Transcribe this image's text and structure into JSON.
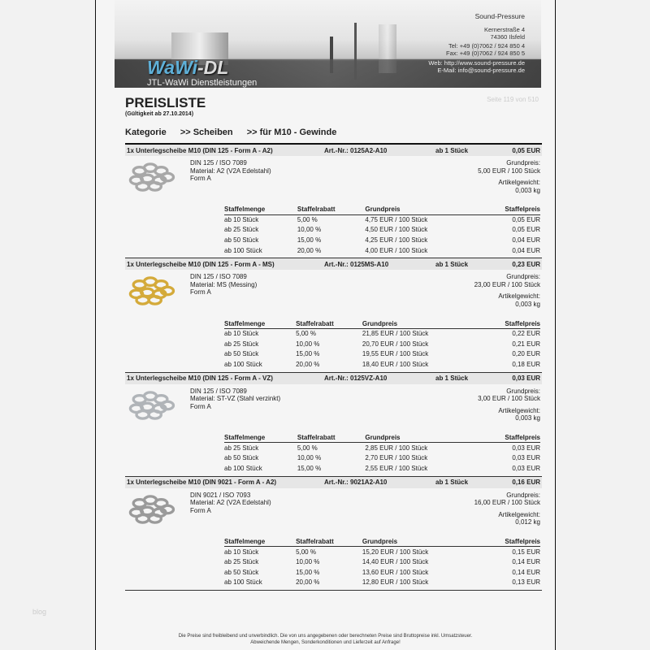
{
  "watermark": "blog",
  "header": {
    "logo_main": "WaWi",
    "logo_dash": "-DL",
    "logo_sub": "JTL-WaWi Dienstleistungen",
    "company": "Sound-Pressure",
    "street": "Kernerstraße 4",
    "city": "74360 Ilsfeld",
    "tel": "Tel: +49 (0)7062 / 924 850 4",
    "fax": "Fax: +49 (0)7062 / 924 850 5",
    "web": "Web: http://www.sound-pressure.de",
    "email": "E-Mail: info@sound-pressure.de"
  },
  "title": "PREISLISTE",
  "validity": "(Gültigkeit ab 27.10.2014)",
  "page_number": "Seite 119 von 510",
  "breadcrumb": [
    "Kategorie",
    ">> Scheiben",
    ">> für M10 - Gewinde"
  ],
  "table_headers": [
    "Staffelmenge",
    "Staffelrabatt",
    "Grundpreis",
    "Staffelpreis"
  ],
  "products": [
    {
      "name": "1x Unterlegscheibe M10  (DIN 125 - Form A - A2)",
      "art": "Art.-Nr.:  0125A2-A10",
      "min": "ab 1 Stück",
      "price": "0,05 EUR",
      "color": "#a8a8a8",
      "desc": [
        "DIN 125 / ISO 7089",
        "Material: A2 (V2A Edelstahl)",
        "Form A"
      ],
      "base_label": "Grundpreis:",
      "base": "5,00 EUR / 100 Stück",
      "weight_label": "Artikelgewicht:",
      "weight": "0,003 kg",
      "rows": [
        [
          "ab 10 Stück",
          "5,00 %",
          "4,75 EUR / 100 Stück",
          "0,05 EUR"
        ],
        [
          "ab 25 Stück",
          "10,00 %",
          "4,50 EUR / 100 Stück",
          "0,05 EUR"
        ],
        [
          "ab 50 Stück",
          "15,00 %",
          "4,25 EUR / 100 Stück",
          "0,04 EUR"
        ],
        [
          "ab 100 Stück",
          "20,00 %",
          "4,00 EUR / 100 Stück",
          "0,04 EUR"
        ]
      ]
    },
    {
      "name": "1x Unterlegscheibe M10  (DIN 125 - Form A - MS)",
      "art": "Art.-Nr.:  0125MS-A10",
      "min": "ab 1 Stück",
      "price": "0,23 EUR",
      "color": "#d4aa3a",
      "desc": [
        "DIN 125 / ISO 7089",
        "Material: MS (Messing)",
        "Form A"
      ],
      "base_label": "Grundpreis:",
      "base": "23,00 EUR / 100 Stück",
      "weight_label": "Artikelgewicht:",
      "weight": "0,003 kg",
      "rows": [
        [
          "ab 10 Stück",
          "5,00 %",
          "21,85 EUR / 100 Stück",
          "0,22 EUR"
        ],
        [
          "ab 25 Stück",
          "10,00 %",
          "20,70 EUR / 100 Stück",
          "0,21 EUR"
        ],
        [
          "ab 50 Stück",
          "15,00 %",
          "19,55 EUR / 100 Stück",
          "0,20 EUR"
        ],
        [
          "ab 100 Stück",
          "20,00 %",
          "18,40 EUR / 100 Stück",
          "0,18 EUR"
        ]
      ]
    },
    {
      "name": "1x Unterlegscheibe M10  (DIN 125 - Form A - VZ)",
      "art": "Art.-Nr.:  0125VZ-A10",
      "min": "ab 1 Stück",
      "price": "0,03 EUR",
      "color": "#b0b4b8",
      "desc": [
        "DIN 125 / ISO 7089",
        "Material: ST-VZ (Stahl verzinkt)",
        "Form A"
      ],
      "base_label": "Grundpreis:",
      "base": "3,00 EUR / 100 Stück",
      "weight_label": "Artikelgewicht:",
      "weight": "0,003 kg",
      "rows": [
        [
          "ab 25 Stück",
          "5,00 %",
          "2,85 EUR / 100 Stück",
          "0,03 EUR"
        ],
        [
          "ab 50 Stück",
          "10,00 %",
          "2,70 EUR / 100 Stück",
          "0,03 EUR"
        ],
        [
          "ab 100 Stück",
          "15,00 %",
          "2,55 EUR / 100 Stück",
          "0,03 EUR"
        ]
      ]
    },
    {
      "name": "1x Unterlegscheibe M10  (DIN 9021 - Form A - A2)",
      "art": "Art.-Nr.:  9021A2-A10",
      "min": "ab 1 Stück",
      "price": "0,16 EUR",
      "color": "#9a9a9a",
      "desc": [
        "DIN 9021 / ISO 7093",
        "Material: A2 (V2A Edelstahl)",
        "Form A"
      ],
      "base_label": "Grundpreis:",
      "base": "16,00 EUR / 100 Stück",
      "weight_label": "Artikelgewicht:",
      "weight": "0,012 kg",
      "rows": [
        [
          "ab 10 Stück",
          "5,00 %",
          "15,20 EUR / 100 Stück",
          "0,15 EUR"
        ],
        [
          "ab 25 Stück",
          "10,00 %",
          "14,40 EUR / 100 Stück",
          "0,14 EUR"
        ],
        [
          "ab 50 Stück",
          "15,00 %",
          "13,60 EUR / 100 Stück",
          "0,14 EUR"
        ],
        [
          "ab 100 Stück",
          "20,00 %",
          "12,80 EUR / 100 Stück",
          "0,13 EUR"
        ]
      ]
    }
  ],
  "footer": [
    "Die Preise sind freibleibend und unverbindlich. Die von uns angegebenen oder berechneten Preise sind Bruttopreise inkl. Umsatzsteuer.",
    "Abweichende Mengen, Sonderkonditionen und Lieferzeit auf Anfrage!"
  ]
}
